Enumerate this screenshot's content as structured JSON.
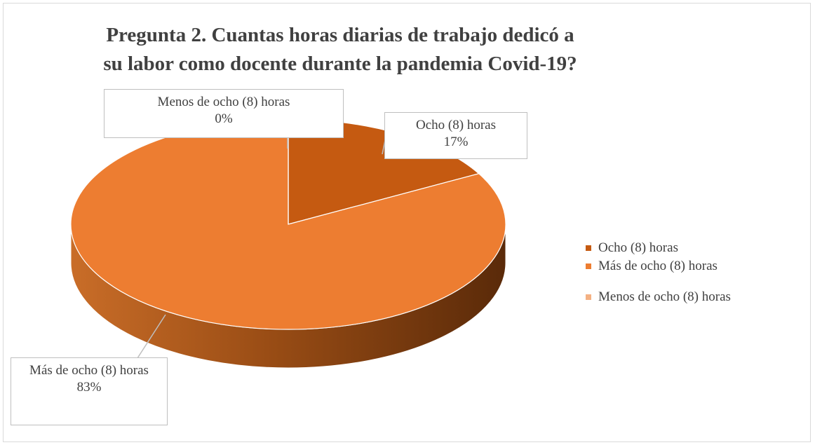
{
  "chart_data": {
    "type": "pie",
    "title": "Pregunta 2. Cuantas horas diarias de trabajo dedicó a su labor como docente durante la pandemia Covid-19?",
    "categories": [
      "Ocho (8) horas",
      "Más de ocho (8) horas",
      "Menos de ocho (8) horas"
    ],
    "values": [
      17,
      83,
      0
    ],
    "value_labels": [
      "17%",
      "83%",
      "0%"
    ],
    "colors": [
      "#c55a11",
      "#ed7d31",
      "#f4b183"
    ],
    "legend": "right"
  }
}
